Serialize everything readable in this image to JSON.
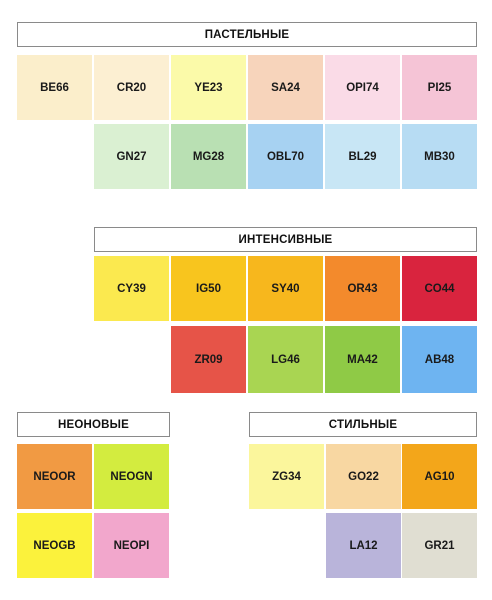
{
  "groups": {
    "pastel": {
      "title": "ПАСТЕЛЬНЫЕ",
      "row1": [
        {
          "code": "BE66",
          "color": "#fbeecb"
        },
        {
          "code": "CR20",
          "color": "#fcefd2"
        },
        {
          "code": "YE23",
          "color": "#fbfaa9"
        },
        {
          "code": "SA24",
          "color": "#f7d4bb"
        },
        {
          "code": "OPI74",
          "color": "#fadbe7"
        },
        {
          "code": "PI25",
          "color": "#f5c4d6"
        }
      ],
      "row2": [
        {
          "code": "GN27",
          "color": "#daf0d2"
        },
        {
          "code": "MG28",
          "color": "#b9e0b3"
        },
        {
          "code": "OBL70",
          "color": "#a7d2f2"
        },
        {
          "code": "BL29",
          "color": "#c8e6f5"
        },
        {
          "code": "MB30",
          "color": "#b7dcf3"
        }
      ]
    },
    "intense": {
      "title": "ИНТЕНСИВНЫЕ",
      "row1": [
        {
          "code": "CY39",
          "color": "#fbe94f"
        },
        {
          "code": "IG50",
          "color": "#f8c51e"
        },
        {
          "code": "SY40",
          "color": "#f7b71d"
        },
        {
          "code": "OR43",
          "color": "#f38a2c"
        },
        {
          "code": "CO44",
          "color": "#d9243e"
        }
      ],
      "row2": [
        {
          "code": "ZR09",
          "color": "#e65448"
        },
        {
          "code": "LG46",
          "color": "#a9d552"
        },
        {
          "code": "MA42",
          "color": "#8fca46"
        },
        {
          "code": "AB48",
          "color": "#6eb4f1"
        }
      ]
    },
    "neon": {
      "title": "НЕОНОВЫЕ",
      "row1": [
        {
          "code": "NEOOR",
          "color": "#f19a43"
        },
        {
          "code": "NEOGN",
          "color": "#d3ec3f"
        }
      ],
      "row2": [
        {
          "code": "NEOGB",
          "color": "#fbf23c"
        },
        {
          "code": "NEOPI",
          "color": "#f2a7cc"
        }
      ]
    },
    "stylish": {
      "title": "СТИЛЬНЫЕ",
      "row1": [
        {
          "code": "ZG34",
          "color": "#fbf69c"
        },
        {
          "code": "GO22",
          "color": "#f8d7a2"
        },
        {
          "code": "AG10",
          "color": "#f3a61a"
        }
      ],
      "row2": [
        {
          "code": "LA12",
          "color": "#b9b4da"
        },
        {
          "code": "GR21",
          "color": "#e0ded2"
        }
      ]
    }
  }
}
